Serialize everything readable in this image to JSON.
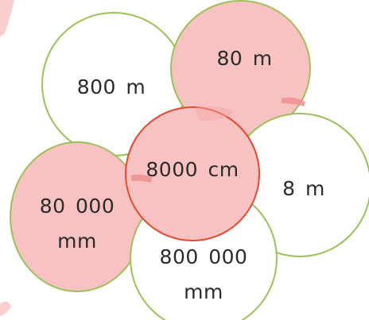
{
  "circles": [
    {
      "id": "c1",
      "label": "800  m",
      "fill": "white",
      "border_color": "#9cc05a"
    },
    {
      "id": "c2",
      "label": "80  m",
      "fill": "pink",
      "border_color": "#9cc05a"
    },
    {
      "id": "c3",
      "label": "8  m",
      "fill": "white",
      "border_color": "#9cc05a"
    },
    {
      "id": "c4",
      "label": "80  000\nmm",
      "fill": "pink",
      "border_color": "#9cc05a"
    },
    {
      "id": "c5",
      "label": "800  000\nmm",
      "fill": "white",
      "border_color": "#9cc05a"
    },
    {
      "id": "c6",
      "label": "8000  cm",
      "fill": "pink",
      "border_color": "#e24a30"
    }
  ],
  "colors": {
    "pink_fill": "#f9c2c2",
    "green_border": "#9cc05a",
    "red_border": "#e24a30",
    "text": "#2b2b2b"
  }
}
